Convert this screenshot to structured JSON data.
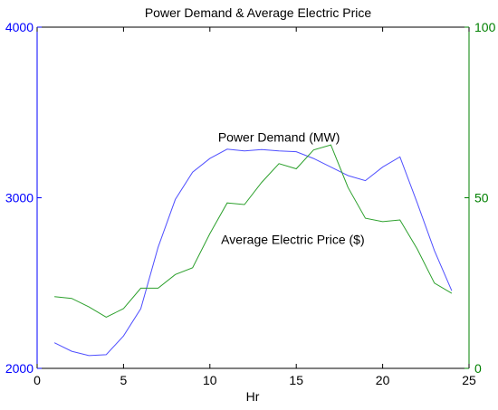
{
  "chart_data": {
    "type": "line",
    "title": "Power Demand & Average Electric Price",
    "xlabel": "Hr",
    "xlim": [
      0,
      25
    ],
    "x_ticks": [
      0,
      5,
      10,
      15,
      20,
      25
    ],
    "left_axis": {
      "ylim": [
        2000,
        4000
      ],
      "ticks": [
        2000,
        3000,
        4000
      ],
      "color": "#0000ff"
    },
    "right_axis": {
      "ylim": [
        0,
        100
      ],
      "ticks": [
        0,
        50,
        100
      ],
      "color": "#008000"
    },
    "x": [
      1,
      2,
      3,
      4,
      5,
      6,
      7,
      8,
      9,
      10,
      11,
      12,
      13,
      14,
      15,
      16,
      17,
      18,
      19,
      20,
      21,
      22,
      23,
      24
    ],
    "series": [
      {
        "name": "Power Demand (MW)",
        "axis": "left",
        "color": "#4f4fff",
        "values": [
          2150,
          2100,
          2075,
          2080,
          2190,
          2350,
          2710,
          2990,
          3150,
          3230,
          3285,
          3275,
          3283,
          3275,
          3270,
          3230,
          3180,
          3130,
          3100,
          3180,
          3240,
          2970,
          2690,
          2455
        ]
      },
      {
        "name": "Average Electric Price ($)",
        "axis": "right",
        "color": "#2ca02c",
        "values": [
          21,
          20.5,
          18,
          15,
          17.5,
          23.5,
          23.5,
          27.5,
          29.5,
          39.5,
          48.5,
          48,
          54.5,
          60,
          58.5,
          64,
          65.5,
          53,
          44,
          43,
          43.5,
          35,
          25,
          22
        ]
      }
    ],
    "annotations": [
      {
        "text": "Power Demand (MW)",
        "x": 14,
        "y": 3330,
        "axis": "left"
      },
      {
        "text": "Average Electric Price ($)",
        "x": 14.8,
        "y": 36.5,
        "axis": "right"
      }
    ],
    "grid": false,
    "legend": "none"
  }
}
